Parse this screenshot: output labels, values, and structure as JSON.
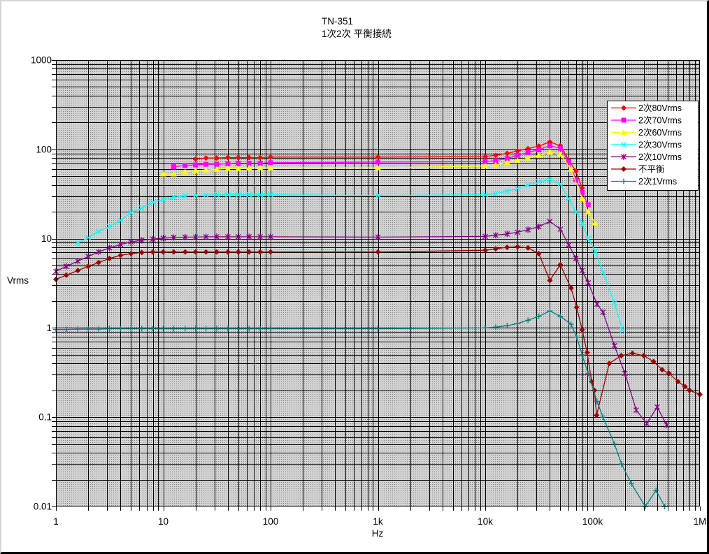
{
  "chart_data": {
    "type": "line",
    "title": "TN-351",
    "subtitle": "1次2次 平衡接続",
    "xlabel": "Hz",
    "ylabel": "Vrms",
    "x_axis": {
      "scale": "log",
      "min": 1,
      "max": 1000000,
      "tick_labels": [
        "1",
        "10",
        "100",
        "1k",
        "10k",
        "100k",
        "1M"
      ]
    },
    "y_axis": {
      "scale": "log",
      "min": 0.01,
      "max": 1000,
      "tick_labels": [
        "1000",
        "100",
        "10",
        "1",
        "0.1",
        "0.01"
      ]
    },
    "grid": {
      "minor_log_gridlines": true,
      "color": "#000000"
    },
    "plot_background": "#c8c8c8",
    "legend": {
      "position": "inside-right",
      "background": "#ffffff",
      "border": "#000000"
    },
    "series": [
      {
        "name": "2次80Vrms",
        "color": "#FF0000",
        "marker": "diamond",
        "points": [
          [
            20,
            78
          ],
          [
            25,
            80
          ],
          [
            31.5,
            80
          ],
          [
            40,
            81
          ],
          [
            50,
            81
          ],
          [
            63,
            81
          ],
          [
            80,
            81
          ],
          [
            100,
            82
          ],
          [
            1000,
            82
          ],
          [
            10000,
            83
          ],
          [
            12500,
            86
          ],
          [
            16000,
            90
          ],
          [
            20000,
            96
          ],
          [
            25000,
            102
          ],
          [
            31500,
            109
          ],
          [
            40000,
            121
          ],
          [
            50000,
            110
          ],
          [
            60000,
            76
          ],
          [
            70000,
            57
          ],
          [
            80000,
            37
          ]
        ]
      },
      {
        "name": "2次70Vrms",
        "color": "#FF00FF",
        "marker": "square",
        "points": [
          [
            12.5,
            64
          ],
          [
            16,
            66
          ],
          [
            20,
            67
          ],
          [
            25,
            68
          ],
          [
            31.5,
            68
          ],
          [
            40,
            69
          ],
          [
            50,
            70
          ],
          [
            63,
            70
          ],
          [
            80,
            70
          ],
          [
            100,
            71
          ],
          [
            1000,
            72
          ],
          [
            10000,
            73
          ],
          [
            12500,
            75
          ],
          [
            16000,
            79
          ],
          [
            20000,
            86
          ],
          [
            25000,
            92
          ],
          [
            31500,
            99
          ],
          [
            40000,
            110
          ],
          [
            50000,
            103
          ],
          [
            60000,
            72
          ],
          [
            70000,
            46
          ],
          [
            80000,
            33
          ],
          [
            91000,
            24
          ]
        ]
      },
      {
        "name": "2次60Vrms",
        "color": "#FFFF00",
        "marker": "triangle",
        "points": [
          [
            10,
            53
          ],
          [
            12.5,
            53
          ],
          [
            16,
            56
          ],
          [
            20,
            58
          ],
          [
            25,
            59
          ],
          [
            31.5,
            60
          ],
          [
            40,
            61
          ],
          [
            50,
            61
          ],
          [
            63,
            62
          ],
          [
            80,
            62
          ],
          [
            100,
            62
          ],
          [
            1000,
            62
          ],
          [
            10000,
            65
          ],
          [
            12500,
            67
          ],
          [
            16000,
            71
          ],
          [
            20000,
            75
          ],
          [
            25000,
            80
          ],
          [
            31500,
            86
          ],
          [
            40000,
            93
          ],
          [
            50000,
            88
          ],
          [
            63000,
            60
          ],
          [
            80000,
            28
          ],
          [
            91000,
            20
          ],
          [
            105000,
            15
          ]
        ]
      },
      {
        "name": "2次30Vrms",
        "color": "#00FFFF",
        "marker": "x",
        "points": [
          [
            1.6,
            8.9
          ],
          [
            2,
            10.3
          ],
          [
            2.5,
            12
          ],
          [
            3.15,
            13.7
          ],
          [
            4,
            16
          ],
          [
            5,
            19.5
          ],
          [
            6.3,
            22
          ],
          [
            8,
            25.5
          ],
          [
            10,
            27.5
          ],
          [
            12.5,
            29
          ],
          [
            16,
            30
          ],
          [
            20,
            30.5
          ],
          [
            25,
            30.8
          ],
          [
            31.5,
            31
          ],
          [
            40,
            31
          ],
          [
            50,
            31
          ],
          [
            63,
            31
          ],
          [
            80,
            31
          ],
          [
            100,
            31
          ],
          [
            1000,
            30.5
          ],
          [
            10000,
            31
          ],
          [
            12500,
            32
          ],
          [
            16000,
            34
          ],
          [
            20000,
            36.5
          ],
          [
            25000,
            40
          ],
          [
            31500,
            43.5
          ],
          [
            40000,
            46
          ],
          [
            50000,
            41
          ],
          [
            60000,
            28
          ],
          [
            70000,
            20
          ],
          [
            80000,
            15
          ],
          [
            91000,
            10
          ],
          [
            106000,
            7.2
          ],
          [
            125000,
            4.2
          ],
          [
            160000,
            1.9
          ],
          [
            190000,
            0.95
          ]
        ]
      },
      {
        "name": "2次10Vrms",
        "color": "#800080",
        "marker": "star",
        "points": [
          [
            1,
            4.3
          ],
          [
            1.25,
            4.9
          ],
          [
            1.6,
            5.6
          ],
          [
            2,
            6.3
          ],
          [
            2.5,
            7.1
          ],
          [
            3.15,
            7.9
          ],
          [
            4,
            8.6
          ],
          [
            5,
            9.2
          ],
          [
            6.3,
            9.6
          ],
          [
            8,
            9.9
          ],
          [
            10,
            10.1
          ],
          [
            12.5,
            10.3
          ],
          [
            16,
            10.4
          ],
          [
            20,
            10.4
          ],
          [
            25,
            10.5
          ],
          [
            31.5,
            10.5
          ],
          [
            40,
            10.5
          ],
          [
            50,
            10.5
          ],
          [
            63,
            10.5
          ],
          [
            80,
            10.5
          ],
          [
            100,
            10.5
          ],
          [
            1000,
            10.4
          ],
          [
            10000,
            10.6
          ],
          [
            12500,
            10.9
          ],
          [
            16000,
            11.3
          ],
          [
            20000,
            11.8
          ],
          [
            25000,
            12.6
          ],
          [
            31500,
            13.6
          ],
          [
            40000,
            15.6
          ],
          [
            50000,
            12.8
          ],
          [
            60000,
            8.5
          ],
          [
            70000,
            6
          ],
          [
            80000,
            4.4
          ],
          [
            91000,
            3.2
          ],
          [
            110000,
            1.85
          ],
          [
            125000,
            1.5
          ],
          [
            160000,
            0.63
          ],
          [
            200000,
            0.31
          ],
          [
            255000,
            0.12
          ],
          [
            320000,
            0.085
          ],
          [
            400000,
            0.13
          ],
          [
            490000,
            0.082
          ]
        ]
      },
      {
        "name": "不平衡",
        "color": "#990000",
        "marker": "diamond",
        "points": [
          [
            1,
            3.5
          ],
          [
            1.25,
            3.9
          ],
          [
            1.6,
            4.4
          ],
          [
            2,
            4.9
          ],
          [
            2.5,
            5.4
          ],
          [
            3.15,
            6
          ],
          [
            4,
            6.5
          ],
          [
            5,
            6.8
          ],
          [
            6.3,
            7
          ],
          [
            8,
            7.1
          ],
          [
            10,
            7.1
          ],
          [
            12.5,
            7.1
          ],
          [
            16,
            7.1
          ],
          [
            20,
            7.1
          ],
          [
            25,
            7.1
          ],
          [
            31.5,
            7.1
          ],
          [
            40,
            7.1
          ],
          [
            50,
            7.1
          ],
          [
            63,
            7.1
          ],
          [
            80,
            7.1
          ],
          [
            100,
            7.1
          ],
          [
            1000,
            7.1
          ],
          [
            10000,
            7.4
          ],
          [
            12500,
            7.7
          ],
          [
            16000,
            8
          ],
          [
            20000,
            8.1
          ],
          [
            25000,
            7.9
          ],
          [
            31500,
            6.8
          ],
          [
            40000,
            3.4
          ],
          [
            50000,
            5.1
          ],
          [
            63000,
            2.8
          ],
          [
            71000,
            1.7
          ],
          [
            80000,
            0.95
          ],
          [
            89000,
            0.53
          ],
          [
            98000,
            0.25
          ],
          [
            104000,
            0.2
          ],
          [
            109000,
            0.105
          ],
          [
            143000,
            0.4
          ],
          [
            185000,
            0.49
          ],
          [
            235000,
            0.52
          ],
          [
            300000,
            0.49
          ],
          [
            370000,
            0.42
          ],
          [
            445000,
            0.34
          ],
          [
            515000,
            0.31
          ],
          [
            625000,
            0.25
          ],
          [
            725000,
            0.22
          ],
          [
            800000,
            0.2
          ],
          [
            1000000,
            0.18
          ]
        ]
      },
      {
        "name": "2次1Vrms",
        "color": "#008080",
        "marker": "plus",
        "points": [
          [
            1,
            0.96
          ],
          [
            1.25,
            0.96
          ],
          [
            1.6,
            0.97
          ],
          [
            2,
            0.97
          ],
          [
            2.5,
            0.97
          ],
          [
            3.15,
            0.98
          ],
          [
            4,
            0.98
          ],
          [
            5,
            0.98
          ],
          [
            6.3,
            0.98
          ],
          [
            8,
            0.98
          ],
          [
            10,
            0.98
          ],
          [
            12.5,
            0.98
          ],
          [
            16,
            0.98
          ],
          [
            20,
            0.98
          ],
          [
            25,
            0.98
          ],
          [
            31.5,
            0.98
          ],
          [
            40,
            0.98
          ],
          [
            50,
            0.98
          ],
          [
            63,
            0.98
          ],
          [
            80,
            0.98
          ],
          [
            100,
            0.98
          ],
          [
            1000,
            0.98
          ],
          [
            10000,
            1
          ],
          [
            12500,
            1.02
          ],
          [
            16000,
            1.06
          ],
          [
            20000,
            1.12
          ],
          [
            25000,
            1.22
          ],
          [
            31500,
            1.35
          ],
          [
            40000,
            1.55
          ],
          [
            50000,
            1.35
          ],
          [
            63000,
            1.1
          ],
          [
            71000,
            0.79
          ],
          [
            80000,
            0.5
          ],
          [
            91000,
            0.31
          ],
          [
            110000,
            0.15
          ],
          [
            125000,
            0.1
          ],
          [
            160000,
            0.05
          ],
          [
            186000,
            0.03
          ],
          [
            230000,
            0.018
          ],
          [
            310000,
            0.0098
          ],
          [
            390000,
            0.0152
          ],
          [
            470000,
            0.0096
          ]
        ]
      }
    ]
  }
}
